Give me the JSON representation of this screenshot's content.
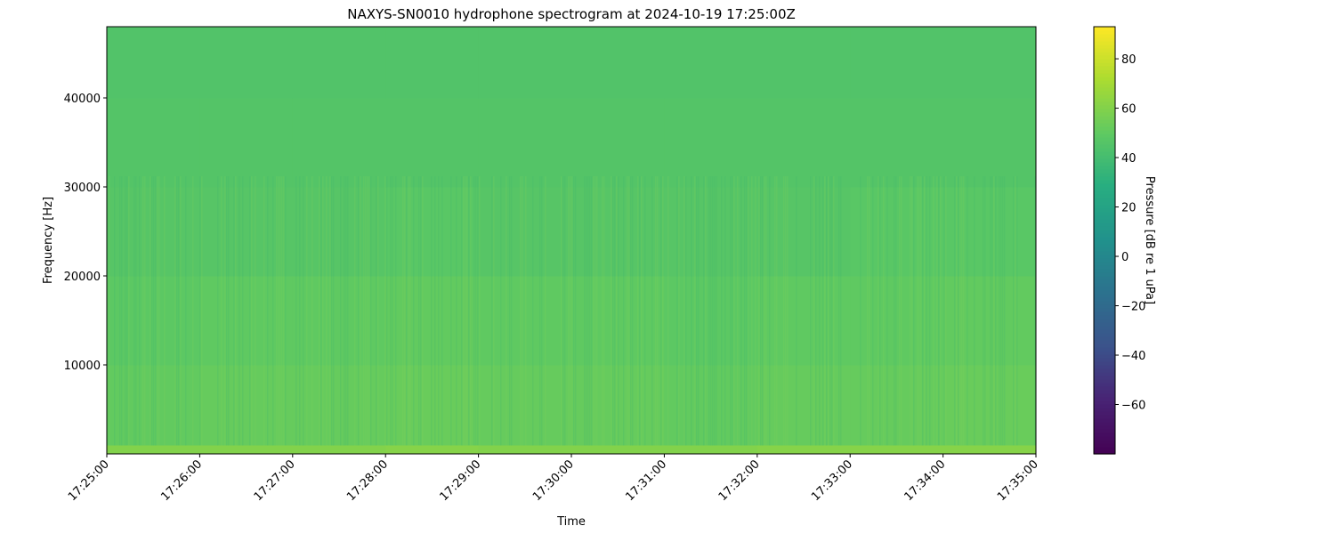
{
  "chart_data": {
    "type": "heatmap",
    "title": "NAXYS-SN0010 hydrophone spectrogram at 2024-10-19 17:25:00Z",
    "xlabel": "Time",
    "ylabel": "Frequency [Hz]",
    "colorbar_label": "Pressure [dB re 1 uPa]",
    "colormap": "viridis",
    "color_range": [
      -80,
      93
    ],
    "colorbar_ticks": [
      80,
      60,
      40,
      20,
      0,
      -20,
      -40,
      -60
    ],
    "colorbar_tick_labels": [
      "80",
      "60",
      "40",
      "20",
      "0",
      "−20",
      "−40",
      "−60"
    ],
    "xlim": [
      "17:25:00",
      "17:35:00"
    ],
    "x_tick_labels": [
      "17:25:00",
      "17:26:00",
      "17:27:00",
      "17:28:00",
      "17:29:00",
      "17:30:00",
      "17:31:00",
      "17:32:00",
      "17:33:00",
      "17:34:00",
      "17:35:00"
    ],
    "ylim": [
      0,
      48000
    ],
    "y_ticks": [
      10000,
      20000,
      30000,
      40000
    ],
    "y_tick_labels": [
      "10000",
      "20000",
      "30000",
      "40000"
    ],
    "grid": false,
    "time_bins": [
      "17:25",
      "17:26",
      "17:27",
      "17:28",
      "17:29",
      "17:30",
      "17:31",
      "17:32",
      "17:33",
      "17:34"
    ],
    "frequency_bands_hz": [
      [
        0,
        1000
      ],
      [
        1000,
        10000
      ],
      [
        10000,
        20000
      ],
      [
        20000,
        30000
      ],
      [
        30000,
        40000
      ],
      [
        40000,
        48000
      ]
    ],
    "values_db": [
      [
        60,
        51,
        49,
        47,
        46,
        45
      ],
      [
        60,
        52,
        50,
        47,
        46,
        45
      ],
      [
        60,
        52,
        50,
        47,
        46,
        45
      ],
      [
        61,
        53,
        51,
        48,
        46,
        45
      ],
      [
        60,
        52,
        50,
        47,
        46,
        45
      ],
      [
        60,
        52,
        50,
        47,
        46,
        45
      ],
      [
        60,
        51,
        49,
        47,
        46,
        45
      ],
      [
        61,
        52,
        50,
        47,
        46,
        45
      ],
      [
        61,
        52,
        50,
        48,
        46,
        45
      ],
      [
        61,
        53,
        51,
        48,
        46,
        45
      ]
    ]
  }
}
